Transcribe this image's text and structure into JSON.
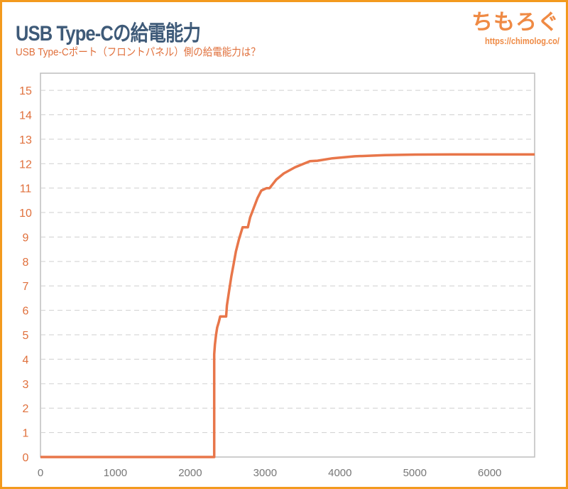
{
  "header": {
    "title": "USB Type-Cの給電能力",
    "subtitle": "USB Type-Cポート（フロントパネル）側の給電能力は？"
  },
  "logo": {
    "mark": "ちもろぐ",
    "url": "https://chimolog.co/"
  },
  "colors": {
    "line": "#e8764a",
    "frame": "#f39a1e",
    "title": "#3e5a78",
    "accent": "#e0703c"
  },
  "chart_data": {
    "type": "line",
    "title": "USB Type-Cの給電能力",
    "subtitle": "USB Type-Cポート（フロントパネル）側の給電能力は？",
    "xlabel": "",
    "ylabel": "",
    "xlim": [
      0,
      6600
    ],
    "ylim": [
      0,
      15.7
    ],
    "xticks": [
      0,
      1000,
      2000,
      3000,
      4000,
      5000,
      6000
    ],
    "yticks": [
      0,
      1,
      2,
      3,
      4,
      5,
      6,
      7,
      8,
      9,
      10,
      11,
      12,
      13,
      14,
      15
    ],
    "grid": "horizontal-dashed",
    "legend": "none",
    "series": [
      {
        "x": [
          0,
          2320,
          2320,
          2330,
          2345,
          2360,
          2380,
          2400,
          2480,
          2490,
          2520,
          2550,
          2580,
          2610,
          2650,
          2700,
          2770,
          2800,
          2850,
          2900,
          2950,
          3020,
          3060,
          3150,
          3250,
          3400,
          3600,
          3700,
          3900,
          4200,
          4600,
          5000,
          5600,
          6600
        ],
        "y": [
          0,
          0,
          4.2,
          4.6,
          5.0,
          5.3,
          5.5,
          5.75,
          5.75,
          6.2,
          6.8,
          7.4,
          7.9,
          8.4,
          8.9,
          9.4,
          9.4,
          9.8,
          10.2,
          10.6,
          10.9,
          11.0,
          11.0,
          11.35,
          11.6,
          11.85,
          12.1,
          12.12,
          12.22,
          12.3,
          12.35,
          12.37,
          12.38,
          12.38
        ]
      }
    ]
  }
}
